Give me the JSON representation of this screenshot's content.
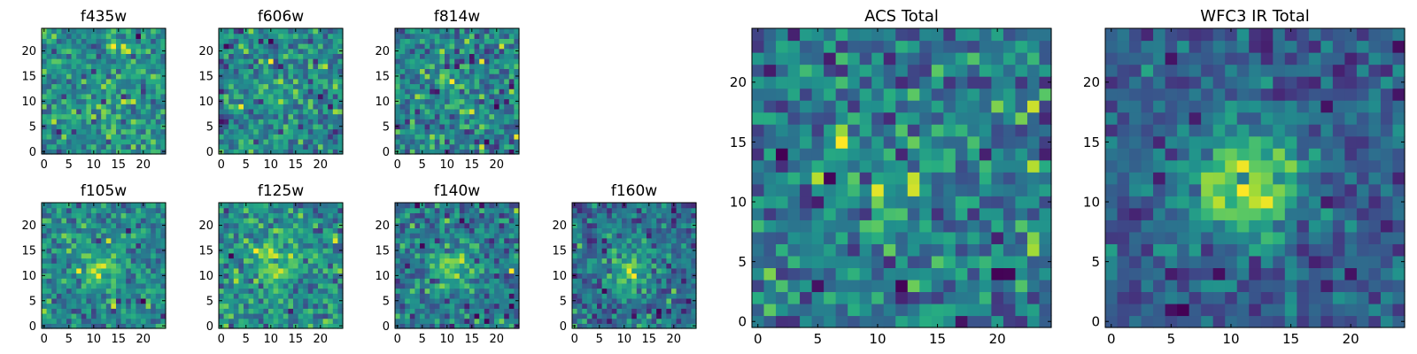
{
  "figure": {
    "title": ""
  },
  "chart_data": [
    {
      "type": "heatmap",
      "title": "f435w",
      "colormap": "viridis",
      "grid_size": 25,
      "xticks": [
        0,
        5,
        10,
        15,
        20
      ],
      "yticks": [
        0,
        5,
        10,
        15,
        20
      ],
      "xlim": [
        -0.5,
        24.5
      ],
      "ylim": [
        -0.5,
        24.5
      ],
      "seed": 11,
      "source_peak": 0.05,
      "noise": 1.0
    },
    {
      "type": "heatmap",
      "title": "f606w",
      "colormap": "viridis",
      "grid_size": 25,
      "xticks": [
        0,
        5,
        10,
        15,
        20
      ],
      "yticks": [
        0,
        5,
        10,
        15,
        20
      ],
      "xlim": [
        -0.5,
        24.5
      ],
      "ylim": [
        -0.5,
        24.5
      ],
      "seed": 23,
      "source_peak": 0.1,
      "noise": 1.0
    },
    {
      "type": "heatmap",
      "title": "f814w",
      "colormap": "viridis",
      "grid_size": 25,
      "xticks": [
        0,
        5,
        10,
        15,
        20
      ],
      "yticks": [
        0,
        5,
        10,
        15,
        20
      ],
      "xlim": [
        -0.5,
        24.5
      ],
      "ylim": [
        -0.5,
        24.5
      ],
      "seed": 37,
      "source_peak": 0.15,
      "noise": 1.0
    },
    {
      "type": "heatmap",
      "title": "f105w",
      "colormap": "viridis",
      "grid_size": 25,
      "xticks": [
        0,
        5,
        10,
        15,
        20
      ],
      "yticks": [
        0,
        5,
        10,
        15,
        20
      ],
      "xlim": [
        -0.5,
        24.5
      ],
      "ylim": [
        -0.5,
        24.5
      ],
      "seed": 41,
      "source_peak": 0.5,
      "noise": 0.8
    },
    {
      "type": "heatmap",
      "title": "f125w",
      "colormap": "viridis",
      "grid_size": 25,
      "xticks": [
        0,
        5,
        10,
        15,
        20
      ],
      "yticks": [
        0,
        5,
        10,
        15,
        20
      ],
      "xlim": [
        -0.5,
        24.5
      ],
      "ylim": [
        -0.5,
        24.5
      ],
      "seed": 53,
      "source_peak": 0.5,
      "noise": 0.8
    },
    {
      "type": "heatmap",
      "title": "f140w",
      "colormap": "viridis",
      "grid_size": 25,
      "xticks": [
        0,
        5,
        10,
        15,
        20
      ],
      "yticks": [
        0,
        5,
        10,
        15,
        20
      ],
      "xlim": [
        -0.5,
        24.5
      ],
      "ylim": [
        -0.5,
        24.5
      ],
      "seed": 67,
      "source_peak": 0.6,
      "noise": 0.8
    },
    {
      "type": "heatmap",
      "title": "f160w",
      "colormap": "viridis",
      "grid_size": 25,
      "xticks": [
        0,
        5,
        10,
        15,
        20
      ],
      "yticks": [
        0,
        5,
        10,
        15,
        20
      ],
      "xlim": [
        -0.5,
        24.5
      ],
      "ylim": [
        -0.5,
        24.5
      ],
      "seed": 79,
      "source_peak": 0.7,
      "noise": 0.8
    },
    {
      "type": "heatmap",
      "title": "ACS Total",
      "colormap": "viridis",
      "grid_size": 25,
      "xticks": [
        0,
        5,
        10,
        15,
        20
      ],
      "yticks": [
        0,
        5,
        10,
        15,
        20
      ],
      "xlim": [
        -0.5,
        24.5
      ],
      "ylim": [
        -0.5,
        24.5
      ],
      "seed": 97,
      "source_peak": 0.35,
      "noise": 0.9
    },
    {
      "type": "heatmap",
      "title": "WFC3 IR Total",
      "colormap": "viridis",
      "grid_size": 25,
      "xticks": [
        0,
        5,
        10,
        15,
        20
      ],
      "yticks": [
        0,
        5,
        10,
        15,
        20
      ],
      "xlim": [
        -0.5,
        24.5
      ],
      "ylim": [
        -0.5,
        24.5
      ],
      "seed": 113,
      "source_peak": 0.9,
      "noise": 0.55
    }
  ]
}
